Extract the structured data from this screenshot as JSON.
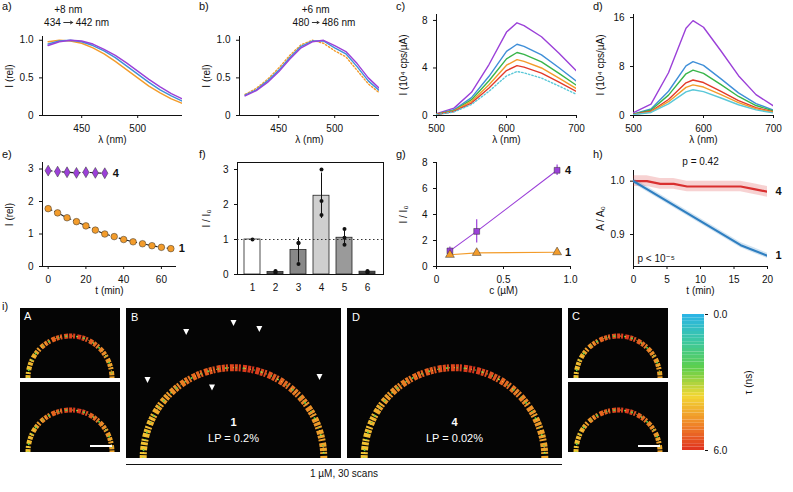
{
  "chart_data": [
    {
      "panel": "a)",
      "type": "line",
      "x_label": "λ (nm)",
      "y_label": "I (rel)",
      "x": [
        420,
        430,
        440,
        450,
        460,
        470,
        480,
        490,
        500,
        510,
        520,
        530,
        540
      ],
      "xlim": [
        415,
        540
      ],
      "xticks": [
        450,
        500
      ],
      "ylim": [
        0,
        1.05
      ],
      "yticks": [
        0,
        0.5,
        {
          "value": 1,
          "label": "1.0"
        }
      ],
      "series": [
        {
          "color": "#f39c2b",
          "values": [
            0.98,
            1.0,
            0.99,
            0.96,
            0.9,
            0.82,
            0.72,
            0.61,
            0.5,
            0.39,
            0.3,
            0.22,
            0.16
          ]
        },
        {
          "color": "#3f8fd8",
          "values": [
            0.95,
            0.99,
            1.0,
            0.98,
            0.93,
            0.86,
            0.77,
            0.66,
            0.55,
            0.44,
            0.34,
            0.26,
            0.19
          ]
        },
        {
          "color": "#9b40d8",
          "values": [
            0.93,
            0.98,
            1.0,
            0.99,
            0.95,
            0.88,
            0.8,
            0.7,
            0.59,
            0.48,
            0.38,
            0.29,
            0.22
          ]
        }
      ],
      "annotation": {
        "from": 434,
        "to": 442,
        "from_label": "434",
        "to_label": "442 nm",
        "shift_label": "+8 nm"
      }
    },
    {
      "panel": "b)",
      "type": "line",
      "x_label": "λ (nm)",
      "y_label": "I (rel)",
      "x": [
        420,
        430,
        440,
        450,
        460,
        470,
        480,
        490,
        500,
        510,
        520,
        530,
        540
      ],
      "xlim": [
        415,
        540
      ],
      "xticks": [
        450,
        500
      ],
      "ylim": [
        0,
        1.05
      ],
      "yticks": [
        0,
        0.5,
        {
          "value": 1,
          "label": "1.0"
        }
      ],
      "series": [
        {
          "color": "#f39c2b",
          "line_style": "dotted",
          "values": [
            0.28,
            0.36,
            0.48,
            0.63,
            0.8,
            0.94,
            1.0,
            0.96,
            0.86,
            0.78,
            0.6,
            0.42,
            0.3
          ]
        },
        {
          "color": "#3f8fd8",
          "values": [
            0.27,
            0.34,
            0.46,
            0.6,
            0.77,
            0.92,
            0.99,
            0.99,
            0.9,
            0.82,
            0.65,
            0.46,
            0.33
          ]
        },
        {
          "color": "#9b40d8",
          "values": [
            0.26,
            0.33,
            0.44,
            0.58,
            0.75,
            0.9,
            0.98,
            1.0,
            0.93,
            0.85,
            0.69,
            0.5,
            0.36
          ]
        }
      ],
      "annotation": {
        "from": 480,
        "to": 486,
        "from_label": "480",
        "to_label": "486 nm",
        "shift_label": "+6 nm"
      }
    },
    {
      "panel": "c)",
      "type": "line",
      "x_label": "λ (nm)",
      "y_label": "I (10⁴ cps/µA)",
      "x": [
        500,
        525,
        550,
        575,
        600,
        615,
        625,
        650,
        675,
        700
      ],
      "xlim": [
        500,
        700
      ],
      "xticks": [
        500,
        600,
        700
      ],
      "ylim": [
        0,
        8.5
      ],
      "yticks": [
        0,
        4,
        8
      ],
      "series": [
        {
          "color": "#9b40d8",
          "values": [
            0.16,
            0.62,
            1.95,
            4.29,
            7.02,
            7.8,
            7.57,
            6.63,
            5.23,
            3.74
          ]
        },
        {
          "color": "#3f8fd8",
          "values": [
            0.12,
            0.48,
            1.5,
            3.3,
            5.4,
            6.0,
            5.82,
            5.1,
            4.02,
            2.88
          ]
        },
        {
          "color": "#38b54a",
          "values": [
            0.11,
            0.42,
            1.33,
            2.92,
            4.77,
            5.3,
            5.14,
            4.51,
            3.55,
            2.54
          ]
        },
        {
          "color": "#f39c2b",
          "values": [
            0.09,
            0.38,
            1.18,
            2.59,
            4.23,
            4.7,
            4.56,
            4.0,
            3.15,
            2.26
          ]
        },
        {
          "color": "#e23a2a",
          "values": [
            0.08,
            0.34,
            1.05,
            2.31,
            3.78,
            4.2,
            4.07,
            3.57,
            2.81,
            2.02
          ]
        },
        {
          "color": "#5bc8d8",
          "line_style": "dotted",
          "values": [
            0.07,
            0.3,
            0.93,
            2.04,
            3.33,
            3.7,
            3.59,
            3.15,
            2.48,
            1.78
          ]
        }
      ]
    },
    {
      "panel": "d)",
      "type": "line",
      "x_label": "λ (nm)",
      "y_label": "I (10⁴ cps/µA)",
      "x": [
        500,
        525,
        550,
        575,
        585,
        600,
        625,
        650,
        675,
        700
      ],
      "xlim": [
        500,
        700
      ],
      "xticks": [
        500,
        600,
        700
      ],
      "ylim": [
        0,
        16.5
      ],
      "yticks": [
        0,
        8,
        16
      ],
      "series": [
        {
          "color": "#9b40d8",
          "values": [
            0.47,
            1.86,
            6.98,
            14.26,
            15.5,
            14.42,
            10.54,
            6.51,
            3.41,
            1.55
          ]
        },
        {
          "color": "#3f8fd8",
          "values": [
            0.26,
            1.06,
            3.96,
            8.1,
            8.8,
            8.18,
            5.98,
            3.7,
            1.94,
            0.88
          ]
        },
        {
          "color": "#38b54a",
          "values": [
            0.22,
            0.89,
            3.33,
            6.81,
            7.4,
            6.88,
            5.03,
            3.11,
            1.63,
            0.74
          ]
        },
        {
          "color": "#e23a2a",
          "values": [
            0.17,
            0.7,
            2.61,
            5.34,
            5.8,
            5.39,
            3.94,
            2.44,
            1.28,
            0.58
          ]
        },
        {
          "color": "#f39c2b",
          "values": [
            0.15,
            0.6,
            2.25,
            4.6,
            5.0,
            4.65,
            3.4,
            2.1,
            1.1,
            0.5
          ]
        },
        {
          "color": "#5bc8d8",
          "values": [
            0.13,
            0.5,
            1.89,
            3.86,
            4.2,
            3.91,
            2.86,
            1.76,
            0.92,
            0.42
          ]
        }
      ]
    },
    {
      "panel": "e)",
      "type": "scatter",
      "x_label": "t (min)",
      "y_label": "I (rel)",
      "xlim": [
        -3,
        68
      ],
      "xticks": [
        0,
        20,
        40,
        60
      ],
      "ylim": [
        0,
        3.2
      ],
      "yticks": [
        0,
        1,
        2,
        3
      ],
      "series": [
        {
          "name": "4",
          "color": "#9b40d8",
          "marker": "diamond",
          "line_style": "dashed",
          "x": [
            0,
            5,
            10,
            15,
            20,
            25,
            30
          ],
          "values": [
            2.95,
            2.92,
            2.9,
            2.88,
            2.9,
            2.88,
            2.87
          ]
        },
        {
          "name": "1",
          "color": "#f39c2b",
          "marker": "circle",
          "line_style": "dashed",
          "x": [
            0,
            5,
            10,
            15,
            20,
            25,
            30,
            35,
            40,
            45,
            50,
            55,
            60,
            65
          ],
          "values": [
            1.78,
            1.65,
            1.5,
            1.38,
            1.25,
            1.12,
            1.0,
            0.92,
            0.83,
            0.76,
            0.7,
            0.64,
            0.59,
            0.55
          ]
        }
      ]
    },
    {
      "panel": "f)",
      "type": "bar",
      "y_label": "I / I₀",
      "categories": [
        "1",
        "2",
        "3",
        "4",
        "5",
        "6"
      ],
      "values": [
        1,
        0.07,
        0.7,
        2.25,
        1.05,
        0.08
      ],
      "errors": [
        0,
        0.03,
        0.35,
        0.65,
        0.2,
        0.03
      ],
      "points": [
        [
          1
        ],
        [
          0.05,
          0.08,
          0.1
        ],
        [
          0.3,
          0.9,
          0.9
        ],
        [
          1.7,
          2.1,
          3.0
        ],
        [
          0.85,
          1.05,
          1.3
        ],
        [
          0.06,
          0.08,
          0.1
        ]
      ],
      "colors": [
        "#ffffff",
        "#555555",
        "#888888",
        "#cfcfcf",
        "#9a9a9a",
        "#444444"
      ],
      "reference_line": 1,
      "ylim": [
        0,
        3.2
      ],
      "yticks": [
        0,
        1,
        2,
        3
      ]
    },
    {
      "panel": "g)",
      "type": "scatter",
      "x_label": "c (µM)",
      "y_label": "I / I₀",
      "xlim": [
        0,
        1.0
      ],
      "xticks": [
        0,
        0.5,
        {
          "value": 1,
          "label": "1.0"
        }
      ],
      "ylim": [
        0,
        8
      ],
      "yticks": [
        0,
        2,
        4,
        6,
        8
      ],
      "series": [
        {
          "name": "4",
          "color": "#9b40d8",
          "marker": "square",
          "line_style": "solid",
          "x": [
            0.1,
            0.3,
            0.9
          ],
          "values": [
            1.2,
            2.7,
            7.4
          ],
          "errors": [
            0.3,
            0.9,
            0.4
          ]
        },
        {
          "name": "1",
          "color": "#f39c2b",
          "marker": "triangle",
          "line_style": "solid",
          "x": [
            0.1,
            0.3,
            0.9
          ],
          "values": [
            0.9,
            1.05,
            1.1
          ],
          "errors": [
            0.1,
            0.1,
            0.1
          ]
        }
      ]
    },
    {
      "panel": "h)",
      "type": "line",
      "x_label": "t (min)",
      "y_label": "A / A₀",
      "x": [
        0,
        2,
        4,
        6,
        8,
        10,
        12,
        14,
        16,
        18,
        20
      ],
      "xlim": [
        0,
        20
      ],
      "xticks": [
        0,
        5,
        10,
        15,
        20
      ],
      "ylim": [
        0.84,
        1.02
      ],
      "yticks": [
        0.9,
        {
          "value": 1,
          "label": "1.0"
        }
      ],
      "p_labels": [
        "p = 0.42",
        "p < 10⁻⁵"
      ],
      "series": [
        {
          "name": "4",
          "color": "#d93030",
          "values": [
            1.0,
            1.0,
            0.995,
            0.995,
            0.99,
            0.99,
            0.99,
            0.99,
            0.99,
            0.985,
            0.98
          ],
          "errors": [
            0.01,
            0.01,
            0.01,
            0.01,
            0.01,
            0.01,
            0.01,
            0.01,
            0.01,
            0.01,
            0.01
          ]
        },
        {
          "name": "1",
          "color": "#2f7fc1",
          "values": [
            1.0,
            0.985,
            0.97,
            0.955,
            0.94,
            0.925,
            0.91,
            0.895,
            0.88,
            0.87,
            0.86
          ],
          "errors": [
            0.005,
            0.005,
            0.005,
            0.005,
            0.005,
            0.005,
            0.005,
            0.005,
            0.005,
            0.005,
            0.005
          ]
        }
      ]
    }
  ],
  "image_panel": {
    "panel": "i)",
    "images": [
      {
        "letter": "A"
      },
      {
        "letter": "B",
        "compound": "1",
        "lp": "LP = 0.2%"
      },
      {
        "letter": "D",
        "compound": "4",
        "lp": "LP = 0.02%"
      },
      {
        "letter": "C"
      }
    ],
    "caption": "1 µM, 30 scans",
    "colorbar": {
      "label": "τ (ns)",
      "range": [
        0,
        6
      ],
      "ticks": [
        {
          "value": 0,
          "label": "0.0"
        },
        {
          "value": 6,
          "label": "6.0"
        }
      ]
    }
  }
}
